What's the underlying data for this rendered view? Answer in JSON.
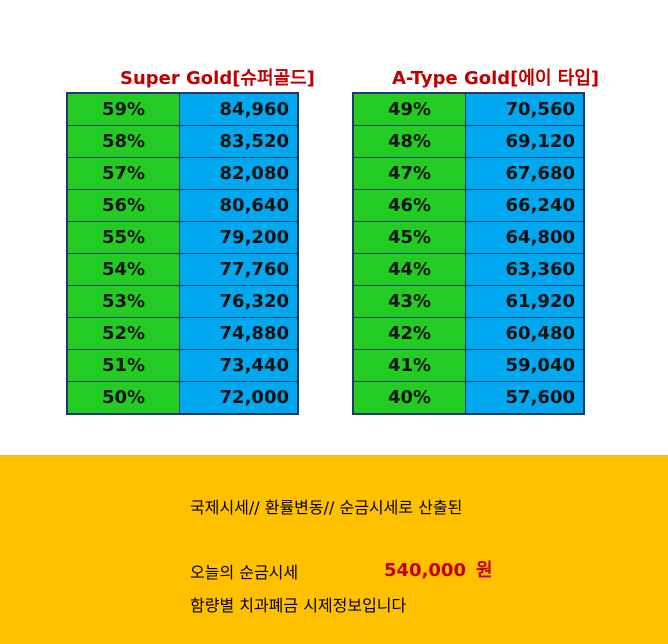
{
  "tables": [
    {
      "title": "Super Gold[슈퍼골드]",
      "rows": [
        {
          "percent": "59%",
          "price": "84,960"
        },
        {
          "percent": "58%",
          "price": "83,520"
        },
        {
          "percent": "57%",
          "price": "82,080"
        },
        {
          "percent": "56%",
          "price": "80,640"
        },
        {
          "percent": "55%",
          "price": "79,200"
        },
        {
          "percent": "54%",
          "price": "77,760"
        },
        {
          "percent": "53%",
          "price": "76,320"
        },
        {
          "percent": "52%",
          "price": "74,880"
        },
        {
          "percent": "51%",
          "price": "73,440"
        },
        {
          "percent": "50%",
          "price": "72,000"
        }
      ]
    },
    {
      "title": "A-Type Gold[에이 타입]",
      "rows": [
        {
          "percent": "49%",
          "price": "70,560"
        },
        {
          "percent": "48%",
          "price": "69,120"
        },
        {
          "percent": "47%",
          "price": "67,680"
        },
        {
          "percent": "46%",
          "price": "66,240"
        },
        {
          "percent": "45%",
          "price": "64,800"
        },
        {
          "percent": "44%",
          "price": "63,360"
        },
        {
          "percent": "43%",
          "price": "61,920"
        },
        {
          "percent": "42%",
          "price": "60,480"
        },
        {
          "percent": "41%",
          "price": "59,040"
        },
        {
          "percent": "40%",
          "price": "57,600"
        }
      ]
    }
  ],
  "info": {
    "line1": "국제시세// 환률변동// 순금시세로 산출된",
    "line2": "오늘의 순금시세",
    "price": "540,000",
    "unit": "원",
    "line3": "함량별 치과폐금 시제정보입니다"
  },
  "colors": {
    "title_red": "#c00000",
    "percent_cell_green": "#22cc22",
    "price_cell_blue": "#00a8f0",
    "table_border_navy": "#1f3864",
    "info_panel_amber": "#ffc000"
  }
}
